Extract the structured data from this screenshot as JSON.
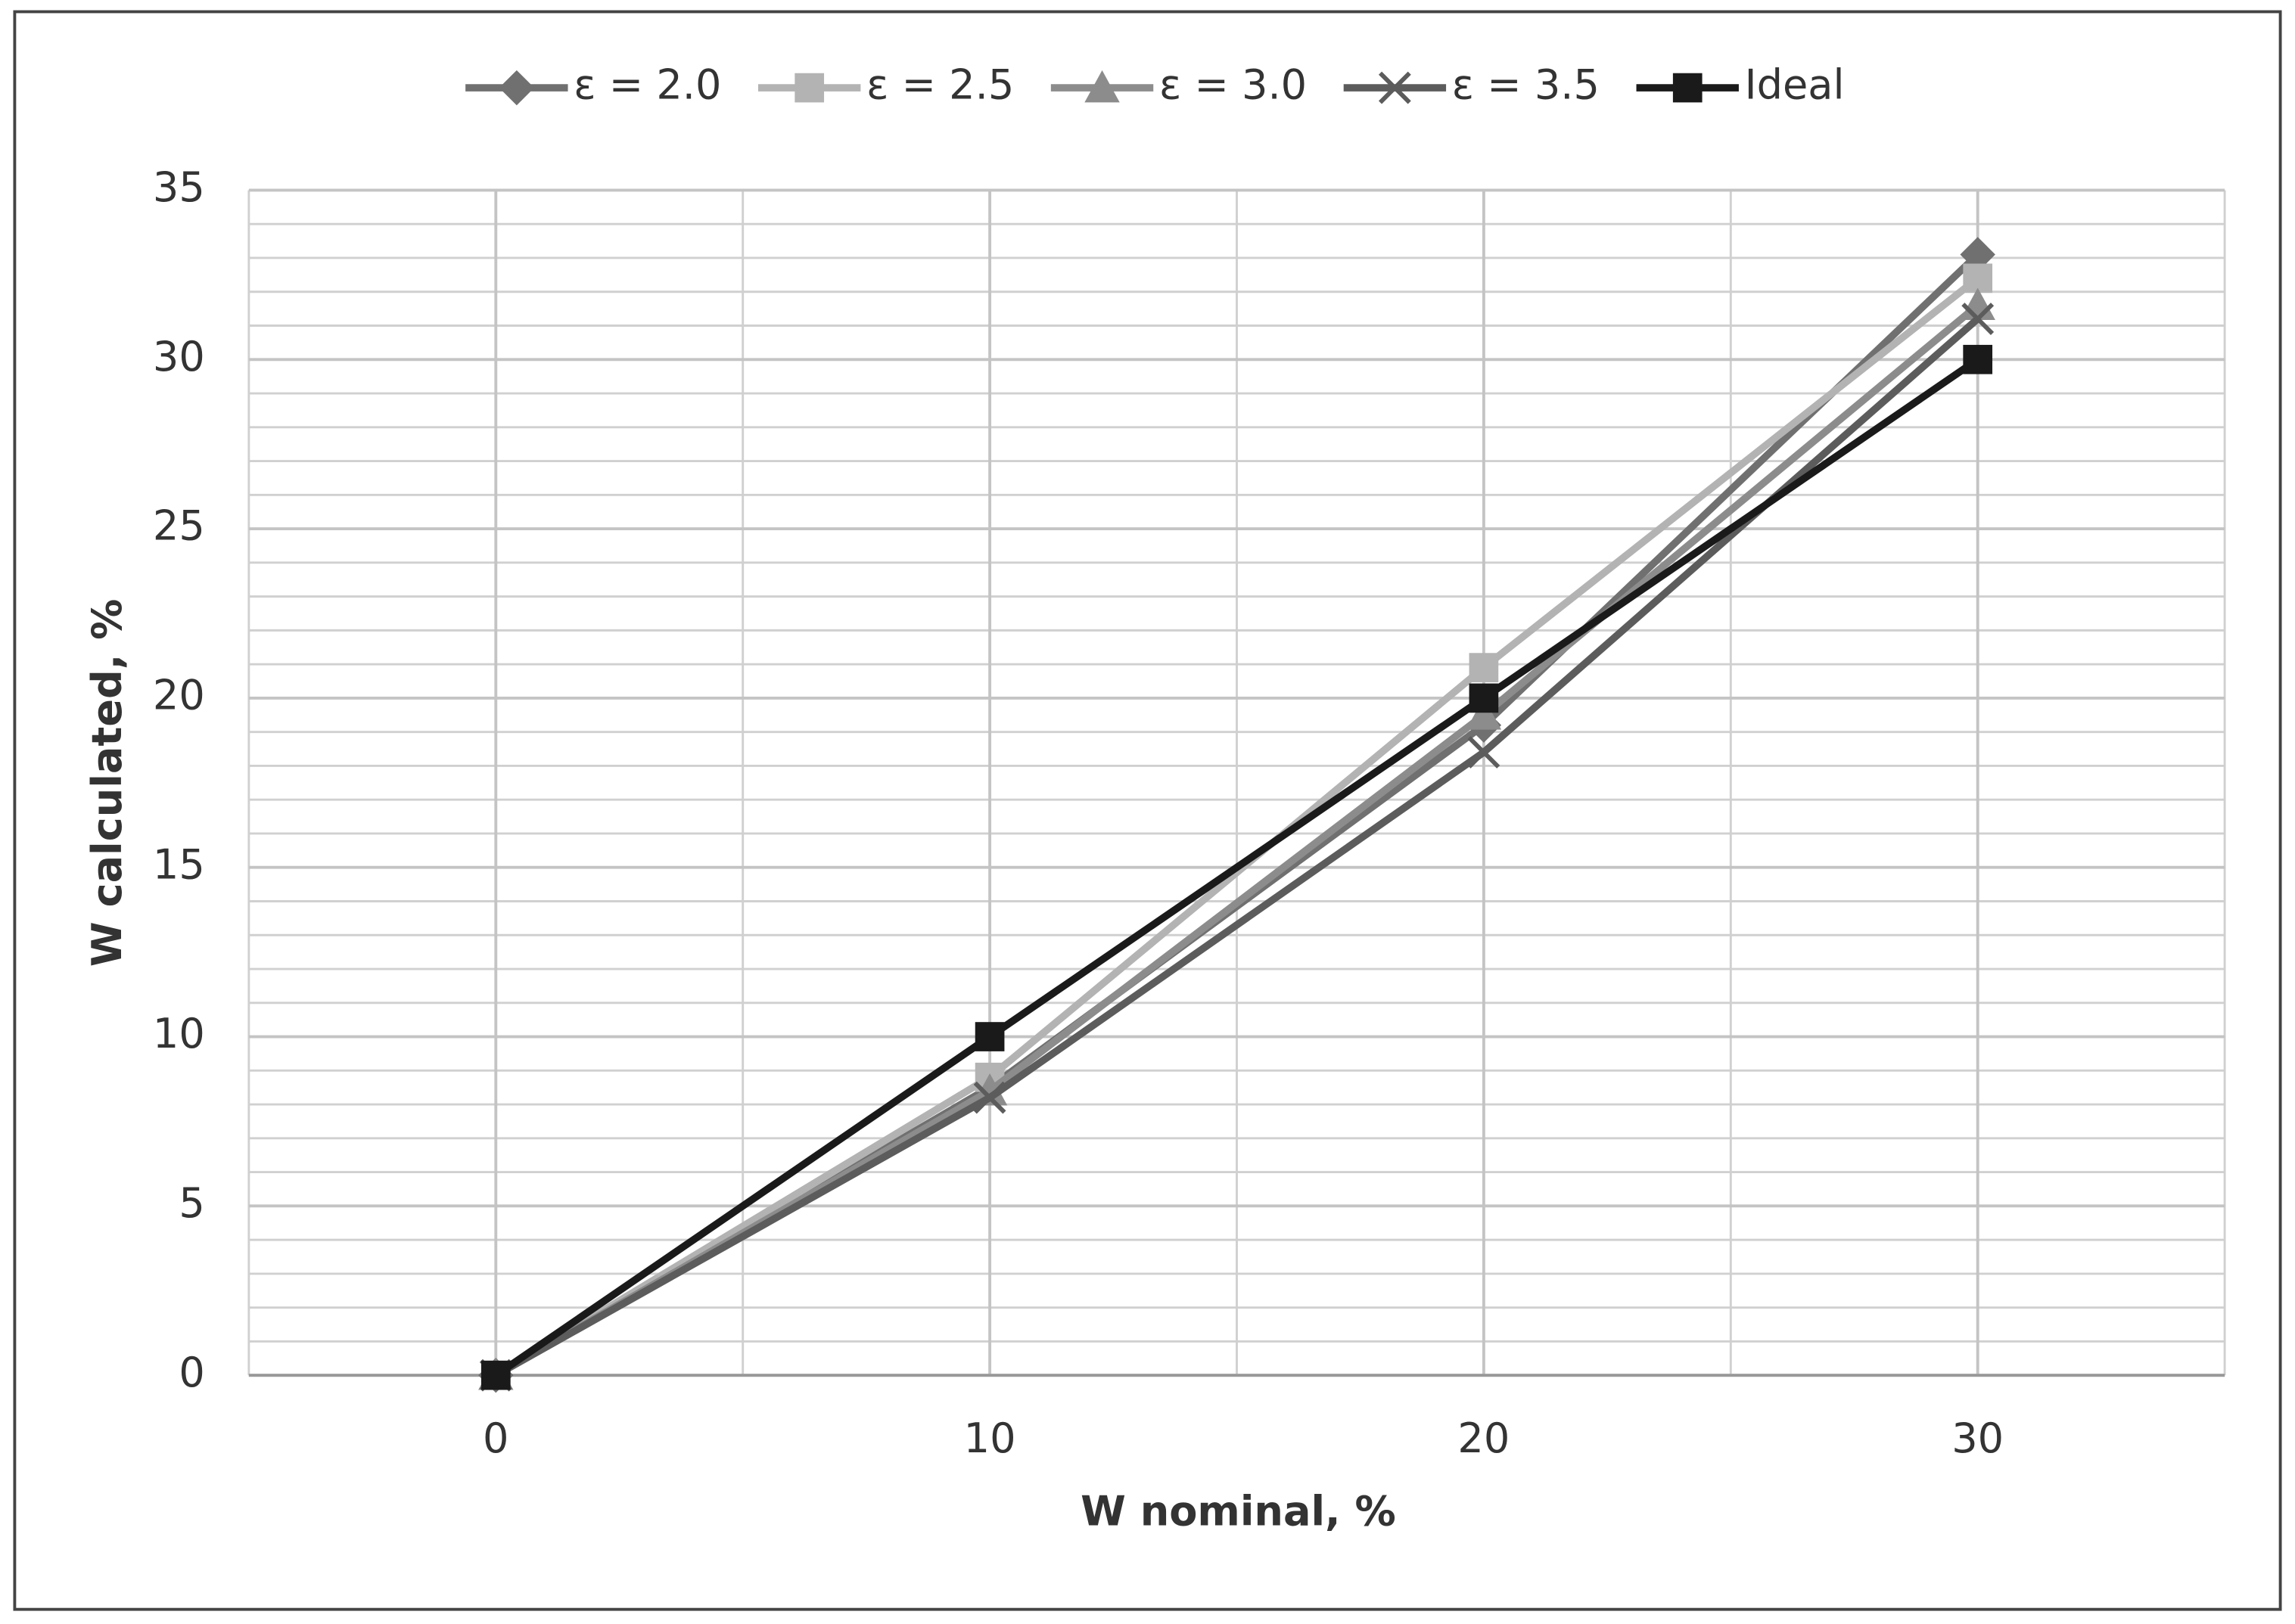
{
  "chart_data": {
    "type": "line",
    "x_label": "W nominal, %",
    "y_label": "W calculated, %",
    "x": [
      0,
      10,
      20,
      30
    ],
    "series": [
      {
        "name": "ε = 2.0",
        "color": "#707070",
        "marker": "diamond",
        "values": [
          0,
          8.5,
          19.2,
          33.1
        ]
      },
      {
        "name": "ε = 2.5",
        "color": "#b3b3b3",
        "marker": "square",
        "values": [
          0,
          8.8,
          20.9,
          32.4
        ]
      },
      {
        "name": "ε = 3.0",
        "color": "#8c8c8c",
        "marker": "triangle",
        "values": [
          0,
          8.4,
          19.5,
          31.6
        ]
      },
      {
        "name": "ε = 3.5",
        "color": "#5c5c5c",
        "marker": "x",
        "values": [
          0,
          8.2,
          18.4,
          31.2
        ]
      },
      {
        "name": "Ideal",
        "color": "#1a1a1a",
        "marker": "square",
        "values": [
          0,
          10,
          20,
          30
        ]
      }
    ],
    "xlim": [
      -5,
      35
    ],
    "xticks": [
      0,
      10,
      20,
      30
    ],
    "ylim": [
      0,
      35
    ],
    "yticks": [
      0,
      5,
      10,
      15,
      20,
      25,
      30,
      35
    ],
    "grid": true,
    "minor_grid_step": {
      "x": 5,
      "y": 1
    },
    "legend": "top"
  }
}
